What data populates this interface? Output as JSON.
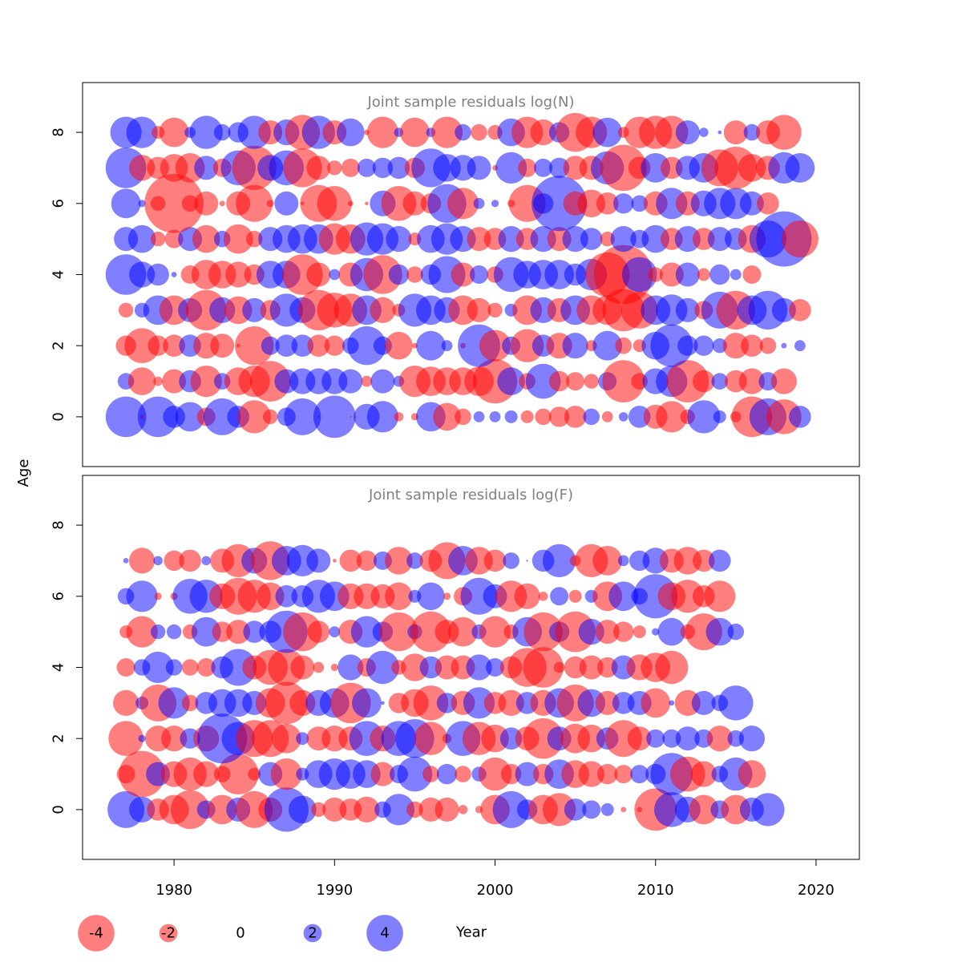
{
  "chart_data": {
    "type": "scatter",
    "encoding": "bubble size ~ |residual|; red = negative, blue = positive",
    "colors": {
      "negative": "#ff0000",
      "positive": "#0000ff",
      "title": "#808080"
    },
    "shared": {
      "xlabel": "Year",
      "ylabel": "Age",
      "x_ticks": [
        1980,
        1990,
        2000,
        2010,
        2020
      ],
      "y_ticks": [
        0,
        2,
        4,
        6,
        8
      ],
      "xlim": [
        1974.3,
        2022.7
      ],
      "ylim": [
        -1.4,
        9.4
      ],
      "years_start": 1977,
      "years_end": 2020
    },
    "panels": [
      {
        "title": "Joint sample residuals log(N)",
        "ages": [
          0,
          1,
          2,
          3,
          4,
          5,
          6,
          7,
          8
        ],
        "residuals": {
          "0": [
            2.2,
            -0.2,
            2.2,
            1.2,
            1.6,
            -1.0,
            2.0,
            1.2,
            -1.8,
            -0.8,
            1.0,
            2.0,
            0.1,
            2.3,
            -0.1,
            1.4,
            1.7,
            -0.5,
            -0.4,
            1.6,
            -1.5,
            -0.9,
            0.6,
            0.6,
            0.7,
            -0.7,
            -0.9,
            -1.1,
            -1.2,
            0.9,
            -0.6,
            0.5,
            1.2,
            -1.3,
            -1.7,
            -0.8,
            1.8,
            0.7,
            -0.6,
            -2.2,
            2.0,
            -1.9,
            1.2
          ],
          "1": [
            0.9,
            -1.5,
            -0.5,
            -1.3,
            1.2,
            -1.7,
            0.9,
            -1.5,
            -1.7,
            -2.2,
            1.3,
            1.4,
            1.4,
            1.4,
            1.3,
            -0.6,
            1.3,
            0.6,
            -1.7,
            -1.6,
            -1.5,
            -1.5,
            -1.6,
            -2.4,
            1.5,
            -0.9,
            1.9,
            -1.1,
            -1.0,
            -0.8,
            1.0,
            -2.3,
            -0.9,
            1.4,
            1.7,
            -2.3,
            -1.2,
            0.9,
            -1.2,
            -1.4,
            1.0,
            -1.4
          ],
          "2": [
            -1.1,
            -1.9,
            -1.1,
            -1.2,
            1.2,
            -1.4,
            -1.3,
            -0.2,
            -2.1,
            1.0,
            1.2,
            1.2,
            -1.2,
            -1.1,
            0.9,
            2.1,
            1.0,
            -1.5,
            -0.3,
            1.6,
            0.6,
            -0.3,
            2.3,
            -1.7,
            1.0,
            -1.8,
            1.2,
            -1.4,
            1.4,
            -0.6,
            1.6,
            -0.9,
            -0.7,
            1.5,
            2.3,
            1.1,
            1.1,
            0.8,
            -1.4,
            -1.2,
            -0.9,
            0.3,
            0.6
          ],
          "3": [
            -0.8,
            0.8,
            1.6,
            -1.6,
            1.3,
            -2.2,
            1.4,
            -1.5,
            1.3,
            -1.1,
            1.8,
            1.4,
            -2.2,
            -1.9,
            -1.8,
            1.6,
            -1.4,
            -0.7,
            1.8,
            1.6,
            1.4,
            -1.6,
            -1.3,
            -0.8,
            0.7,
            -1.6,
            1.4,
            -1.3,
            1.6,
            -1.6,
            -1.6,
            -2.3,
            -2.0,
            1.6,
            1.7,
            1.3,
            -1.0,
            2.0,
            -2.1,
            1.6,
            2.1,
            1.3,
            -1.2
          ],
          "4": [
            2.2,
            1.4,
            1.2,
            0.3,
            -1.0,
            -1.6,
            -1.5,
            -1.4,
            -1.1,
            1.5,
            1.5,
            -2.2,
            -1.3,
            0.6,
            -1.3,
            1.8,
            -2.1,
            1.1,
            -0.9,
            1.1,
            2.0,
            -1.3,
            1.0,
            -0.9,
            1.9,
            1.5,
            1.6,
            1.6,
            1.2,
            1.7,
            -2.4,
            -3.2,
            1.9,
            -0.8,
            -1.3,
            1.3,
            -0.7,
            1.1,
            0.6,
            -1.0
          ],
          "5": [
            1.3,
            1.5,
            -0.8,
            -1.0,
            1.3,
            -1.5,
            0.9,
            -1.6,
            -0.9,
            1.3,
            1.5,
            1.6,
            1.6,
            -1.7,
            -1.6,
            1.8,
            1.7,
            1.4,
            -0.7,
            1.5,
            1.7,
            1.4,
            -1.3,
            -1.2,
            1.4,
            -1.2,
            1.4,
            -1.3,
            1.4,
            1.2,
            -0.8,
            1.4,
            1.0,
            1.5,
            -1.2,
            1.4,
            -1.2,
            1.3,
            1.2,
            -1.5,
            2.0,
            3.0,
            -2.0
          ],
          "6": [
            1.6,
            0.4,
            -0.8,
            -3.2,
            -0.9,
            -1.3,
            -0.3,
            -1.3,
            -2.0,
            -0.4,
            1.3,
            -0.2,
            -2.0,
            -1.9,
            -0.3,
            -0.2,
            1.4,
            -1.9,
            -1.3,
            -1.1,
            2.1,
            -1.7,
            0.6,
            0.4,
            -0.4,
            -2.0,
            1.1,
            3.0,
            -1.3,
            -1.5,
            -1.2,
            1.1,
            0.9,
            -1.3,
            1.7,
            -1.3,
            1.4,
            1.7,
            1.7,
            1.3,
            -1.2
          ],
          "7": [
            2.2,
            -1.4,
            -1.2,
            -1.5,
            -1.6,
            1.3,
            -1.0,
            1.9,
            -2.4,
            1.4,
            1.9,
            -2.1,
            -1.3,
            -0.8,
            -1.0,
            1.0,
            1.1,
            1.2,
            -1.1,
            2.1,
            1.5,
            1.4,
            1.3,
            -0.3,
            1.7,
            -1.0,
            1.0,
            1.1,
            -1.3,
            -1.3,
            1.8,
            -2.5,
            -1.2,
            1.6,
            -1.2,
            1.3,
            1.6,
            -2.0,
            -2.3,
            -1.5,
            -1.3,
            1.7,
            1.6
          ],
          "8": [
            1.7,
            1.7,
            -0.7,
            -1.6,
            0.6,
            1.8,
            0.9,
            1.1,
            1.8,
            -1.3,
            1.4,
            -1.9,
            1.8,
            -1.3,
            1.5,
            -0.3,
            -1.7,
            0.5,
            -1.6,
            0.5,
            -1.7,
            0.9,
            -0.9,
            -0.8,
            1.5,
            -1.7,
            -1.4,
            1.1,
            -2.1,
            -1.7,
            1.6,
            -0.6,
            -1.7,
            -1.8,
            -1.8,
            1.3,
            0.5,
            0.2,
            -1.3,
            0.9,
            -1.3,
            -1.9
          ]
        }
      },
      {
        "title": "Joint sample residuals log(F)",
        "ages": [
          0,
          1,
          2,
          3,
          4,
          5,
          6,
          7
        ],
        "residuals": {
          "0": [
            2.0,
            1.4,
            -1.2,
            -1.6,
            -2.1,
            1.0,
            -1.6,
            1.3,
            -2.0,
            -1.3,
            2.4,
            1.5,
            -0.8,
            -1.3,
            -1.2,
            -1.4,
            0.9,
            1.7,
            -0.9,
            -1.3,
            -1.3,
            -0.5,
            -0.4,
            -1.6,
            2.0,
            1.1,
            -1.6,
            -1.8,
            1.2,
            1.0,
            0.7,
            -0.3,
            -0.3,
            -2.3,
            1.9,
            1.4,
            -1.6,
            1.0,
            -1.6,
            1.3,
            1.8
          ],
          "1": [
            -1.0,
            -2.5,
            1.3,
            -1.4,
            -1.8,
            -1.4,
            -0.9,
            -2.2,
            -0.7,
            1.3,
            -1.7,
            0.7,
            1.5,
            1.7,
            1.6,
            1.5,
            -1.3,
            1.0,
            1.9,
            -0.9,
            1.1,
            -0.9,
            0.8,
            -1.8,
            -1.1,
            1.3,
            -1.1,
            1.6,
            -1.5,
            -1.4,
            -1.1,
            -1.0,
            1.0,
            1.1,
            2.3,
            -1.9,
            -1.4,
            0.9,
            1.8,
            -1.5
          ],
          "2": [
            -1.9,
            0.4,
            -1.4,
            -1.4,
            1.1,
            -1.4,
            2.7,
            1.8,
            -2.0,
            -2.0,
            -1.6,
            0.7,
            -1.3,
            -1.4,
            -1.3,
            1.9,
            -1.4,
            1.9,
            2.1,
            -1.8,
            -0.5,
            1.9,
            -1.8,
            -1.5,
            1.2,
            -1.3,
            -2.2,
            1.3,
            -1.6,
            -1.5,
            1.2,
            -2.0,
            -1.3,
            1.0,
            1.0,
            1.3,
            1.0,
            -1.4,
            0.9,
            1.4
          ],
          "3": [
            -1.4,
            0.7,
            -2.0,
            1.7,
            -0.9,
            1.2,
            1.5,
            1.5,
            1.3,
            -1.6,
            -2.3,
            -1.4,
            1.4,
            1.6,
            -2.2,
            1.6,
            0.2,
            -1.1,
            -1.5,
            -1.9,
            1.1,
            -1.3,
            1.7,
            -1.2,
            -1.4,
            1.2,
            -1.4,
            1.6,
            -2.0,
            1.5,
            -1.3,
            1.2,
            1.3,
            -1.6,
            0.3,
            -1.4,
            1.3,
            0.9,
            1.9
          ],
          "4": [
            -1.0,
            0.9,
            1.7,
            0.9,
            -0.9,
            -1.0,
            1.2,
            2.0,
            -1.3,
            -1.9,
            -2.0,
            -1.3,
            -0.6,
            -0.4,
            1.4,
            -1.0,
            1.8,
            -0.8,
            -1.5,
            1.2,
            -1.3,
            -1.3,
            1.4,
            1.0,
            -1.2,
            -2.1,
            -2.2,
            -0.6,
            -1.2,
            -1.3,
            -1.1,
            1.3,
            -1.4,
            -1.6,
            -1.8
          ],
          "5": [
            -0.7,
            -1.7,
            0.8,
            0.8,
            -0.8,
            1.6,
            -1.1,
            -1.3,
            1.2,
            1.2,
            2.3,
            -2.1,
            -1.2,
            0.6,
            -1.3,
            1.7,
            1.1,
            -2.1,
            0.8,
            -2.2,
            -1.3,
            -1.6,
            0.8,
            -1.7,
            -0.8,
            1.6,
            -2.1,
            1.1,
            -2.2,
            1.4,
            -1.3,
            -1.1,
            -0.7,
            0.4,
            1.5,
            -0.8,
            -2.0,
            1.5,
            0.9
          ],
          "6": [
            0.9,
            1.7,
            -0.4,
            -0.4,
            1.9,
            1.8,
            -1.4,
            -2.0,
            -1.8,
            -1.5,
            1.2,
            1.2,
            1.8,
            1.6,
            -1.4,
            -1.4,
            -1.3,
            -1.5,
            0.7,
            1.5,
            -0.4,
            -1.0,
            2.0,
            1.3,
            -1.7,
            -1.4,
            -0.5,
            1.0,
            -0.7,
            0.7,
            -1.6,
            1.6,
            0.9,
            2.4,
            -1.5,
            -1.8,
            -1.2,
            -1.7
          ],
          "7": [
            0.3,
            -1.4,
            0.5,
            -1.1,
            -1.2,
            0.5,
            -1.3,
            -1.8,
            1.4,
            -2.1,
            1.6,
            1.7,
            1.3,
            -0.2,
            -1.2,
            -1.1,
            1.0,
            -1.5,
            0.9,
            -1.2,
            -2.0,
            1.6,
            -1.5,
            -1.2,
            0.9,
            0.1,
            1.2,
            1.8,
            -0.6,
            -1.8,
            -1.6,
            0.6,
            1.1,
            1.4,
            -1.3,
            -1.5,
            -1.2,
            1.2
          ]
        }
      }
    ],
    "legend": {
      "values": [
        -4,
        -2,
        0,
        2,
        4
      ],
      "labels": [
        "-4",
        "-2",
        "0",
        "2",
        "4"
      ],
      "title": "Year"
    }
  }
}
